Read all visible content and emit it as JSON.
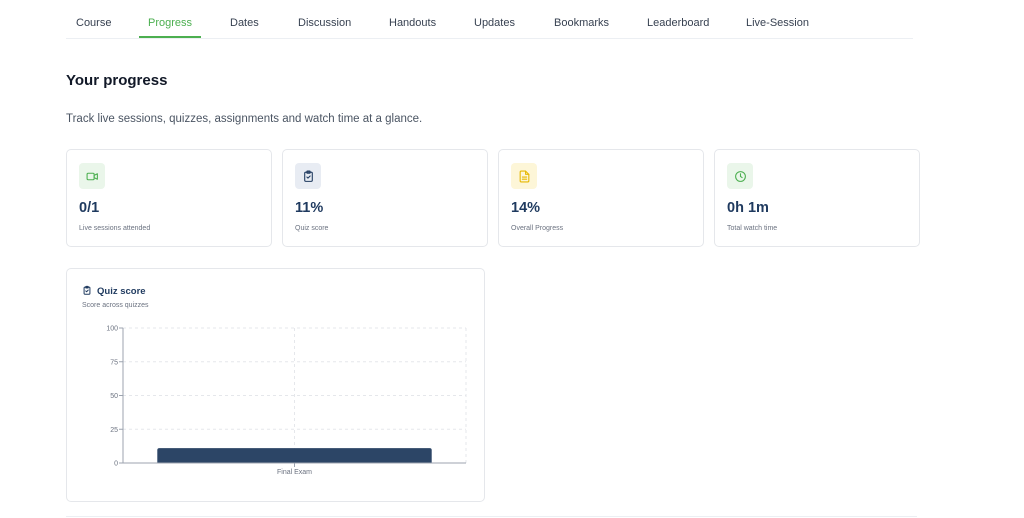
{
  "tabs": [
    {
      "label": "Course"
    },
    {
      "label": "Progress",
      "active": true
    },
    {
      "label": "Dates"
    },
    {
      "label": "Discussion"
    },
    {
      "label": "Handouts"
    },
    {
      "label": "Updates"
    },
    {
      "label": "Bookmarks"
    },
    {
      "label": "Leaderboard"
    },
    {
      "label": "Live-Session"
    }
  ],
  "header": {
    "title": "Your progress",
    "subtitle": "Track live sessions, quizzes, assignments and watch time at a glance."
  },
  "stats": [
    {
      "value": "0/1",
      "label": "Live sessions attended",
      "icon": "video-camera-icon",
      "icon_color": "#4caf50",
      "icon_bg": "#eaf6ea"
    },
    {
      "value": "11%",
      "label": "Quiz score",
      "icon": "clipboard-check-icon",
      "icon_color": "#1f3a5f",
      "icon_bg": "#e8ecf3"
    },
    {
      "value": "14%",
      "label": "Overall Progress",
      "icon": "document-icon",
      "icon_color": "#e6b800",
      "icon_bg": "#fdf6d8"
    },
    {
      "value": "0h 1m",
      "label": "Total watch time",
      "icon": "clock-icon",
      "icon_color": "#4caf50",
      "icon_bg": "#eaf6ea"
    }
  ],
  "quiz_chart": {
    "title": "Quiz score",
    "subtitle": "Score across quizzes"
  },
  "chart_data": {
    "type": "bar",
    "categories": [
      "Final Exam"
    ],
    "values": [
      11
    ],
    "ylim": [
      0,
      100
    ],
    "yticks": [
      "0",
      "25",
      "50",
      "75",
      "100"
    ],
    "grid": true,
    "bar_color": "#2c4566"
  }
}
